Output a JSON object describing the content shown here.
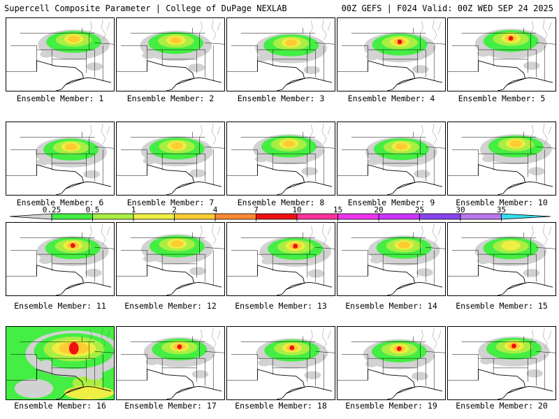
{
  "header": {
    "title": "Supercell Composite Parameter | College of DuPage NEXLAB",
    "run_info": "00Z GEFS | F024 Valid: 00Z WED SEP 24 2025"
  },
  "legend": {
    "ticks": [
      "0.25",
      "0.5",
      "1",
      "2",
      "4",
      "7",
      "10",
      "15",
      "20",
      "25",
      "30",
      "35"
    ],
    "colors": [
      "#d2d2d2",
      "#44ee44",
      "#aaee44",
      "#eeee44",
      "#ffcc33",
      "#ff8833",
      "#ee1111",
      "#ff3399",
      "#ee33ee",
      "#cc33ff",
      "#8844ee",
      "#bb77ee",
      "#33ddee"
    ]
  },
  "panels": [
    {
      "label": "Ensemble Member: 1",
      "peak": 4
    },
    {
      "label": "Ensemble Member: 2",
      "peak": 4
    },
    {
      "label": "Ensemble Member: 3",
      "peak": 4
    },
    {
      "label": "Ensemble Member: 4",
      "peak": 7
    },
    {
      "label": "Ensemble Member: 5",
      "peak": 7
    },
    {
      "label": "Ensemble Member: 6",
      "peak": 4
    },
    {
      "label": "Ensemble Member: 7",
      "peak": 4
    },
    {
      "label": "Ensemble Member: 8",
      "peak": 4
    },
    {
      "label": "Ensemble Member: 9",
      "peak": 4
    },
    {
      "label": "Ensemble Member: 10",
      "peak": 4
    },
    {
      "label": "Ensemble Member: 11",
      "peak": 7
    },
    {
      "label": "Ensemble Member: 12",
      "peak": 4
    },
    {
      "label": "Ensemble Member: 13",
      "peak": 7
    },
    {
      "label": "Ensemble Member: 14",
      "peak": 4
    },
    {
      "label": "Ensemble Member: 15",
      "peak": 2
    },
    {
      "label": "Ensemble Member: 16",
      "peak": 7
    },
    {
      "label": "Ensemble Member: 17",
      "peak": 7
    },
    {
      "label": "Ensemble Member: 18",
      "peak": 7
    },
    {
      "label": "Ensemble Member: 19",
      "peak": 7
    },
    {
      "label": "Ensemble Member: 20",
      "peak": 7
    }
  ]
}
